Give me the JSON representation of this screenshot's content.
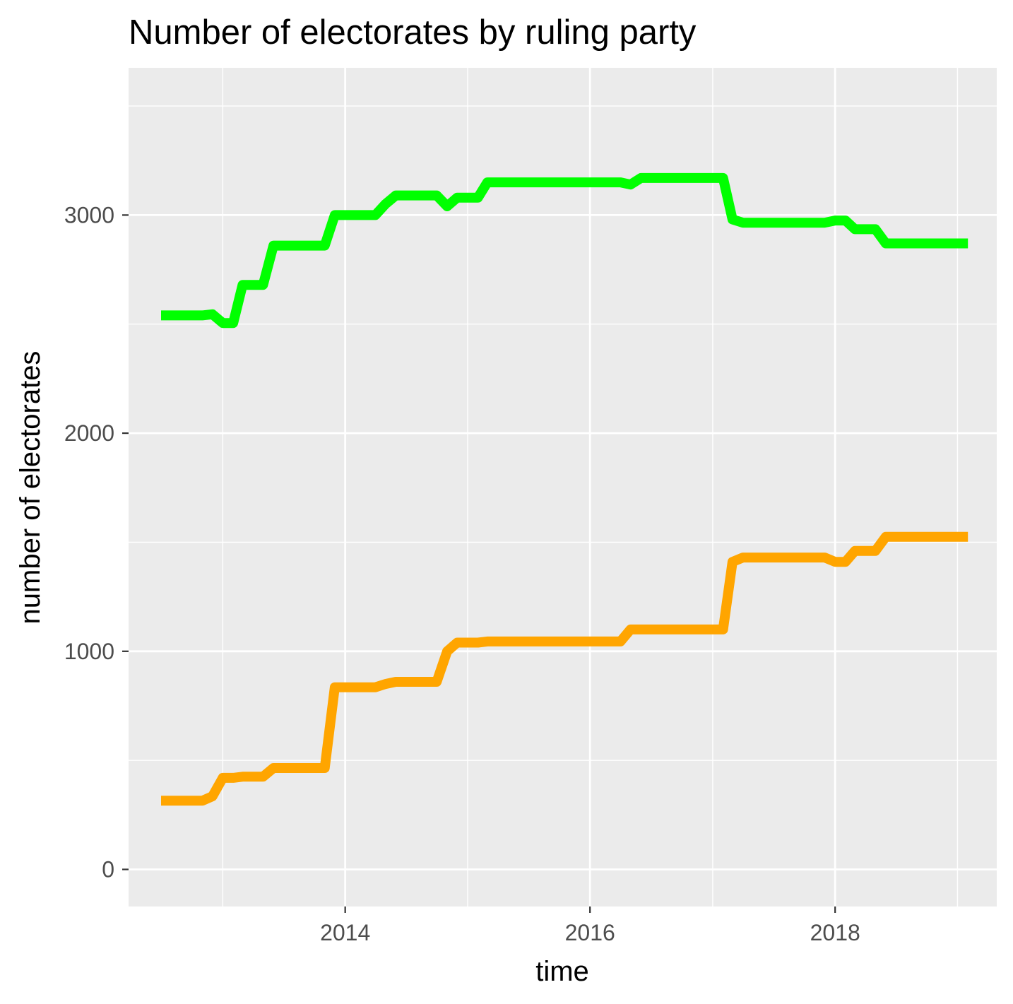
{
  "chart_data": {
    "type": "line",
    "title": "Number of electorates by ruling party",
    "xlabel": "time",
    "ylabel": "number of electorates",
    "xlim": [
      "2012-03-26",
      "2019-04-28"
    ],
    "ylim": [
      -170,
      3675
    ],
    "x_major_ticks": [
      "2014-01-01",
      "2016-01-01",
      "2018-01-01"
    ],
    "x_tick_labels": [
      "2014",
      "2016",
      "2018"
    ],
    "x_minor_ticks": [
      "2013-01-01",
      "2015-01-01",
      "2017-01-01",
      "2019-01-01"
    ],
    "y_major_ticks": [
      0,
      1000,
      2000,
      3000
    ],
    "y_tick_labels": [
      "0",
      "1000",
      "2000",
      "3000"
    ],
    "y_minor_ticks": [
      500,
      1500,
      2500,
      3500
    ],
    "grid": true,
    "legend": "none",
    "colors": {
      "panel_background": "#ebebeb",
      "grid_line": "#ffffff",
      "axis_tick": "#333333"
    },
    "series": [
      {
        "color": "#00ff00",
        "x": [
          "2012-07-01",
          "2012-08-01",
          "2012-09-01",
          "2012-10-01",
          "2012-11-01",
          "2012-12-01",
          "2013-01-01",
          "2013-02-01",
          "2013-03-01",
          "2013-04-01",
          "2013-05-01",
          "2013-06-01",
          "2013-07-01",
          "2013-08-01",
          "2013-09-01",
          "2013-10-01",
          "2013-11-01",
          "2013-12-01",
          "2014-01-01",
          "2014-02-01",
          "2014-03-01",
          "2014-04-01",
          "2014-05-01",
          "2014-06-01",
          "2014-07-01",
          "2014-08-01",
          "2014-09-01",
          "2014-10-01",
          "2014-11-01",
          "2014-12-01",
          "2015-01-01",
          "2015-02-01",
          "2015-03-01",
          "2015-04-01",
          "2015-05-01",
          "2015-06-01",
          "2015-07-01",
          "2015-08-01",
          "2015-09-01",
          "2015-10-01",
          "2015-11-01",
          "2015-12-01",
          "2016-01-01",
          "2016-02-01",
          "2016-03-01",
          "2016-04-01",
          "2016-05-01",
          "2016-06-01",
          "2016-07-01",
          "2016-08-01",
          "2016-09-01",
          "2016-10-01",
          "2016-11-01",
          "2016-12-01",
          "2017-01-01",
          "2017-02-01",
          "2017-03-01",
          "2017-04-01",
          "2017-05-01",
          "2017-06-01",
          "2017-07-01",
          "2017-08-01",
          "2017-09-01",
          "2017-10-01",
          "2017-11-01",
          "2017-12-01",
          "2018-01-01",
          "2018-02-01",
          "2018-03-01",
          "2018-04-01",
          "2018-05-01",
          "2018-06-01",
          "2018-07-01",
          "2018-08-01",
          "2018-09-01",
          "2018-10-01",
          "2018-11-01",
          "2018-12-01",
          "2019-01-01",
          "2019-02-01"
        ],
        "y": [
          2540,
          2540,
          2540,
          2540,
          2540,
          2545,
          2505,
          2505,
          2680,
          2680,
          2680,
          2860,
          2860,
          2860,
          2860,
          2860,
          2860,
          3000,
          3000,
          3000,
          3000,
          3000,
          3050,
          3090,
          3090,
          3090,
          3090,
          3090,
          3040,
          3080,
          3080,
          3080,
          3150,
          3150,
          3150,
          3150,
          3150,
          3150,
          3150,
          3150,
          3150,
          3150,
          3150,
          3150,
          3150,
          3150,
          3140,
          3170,
          3170,
          3170,
          3170,
          3170,
          3170,
          3170,
          3170,
          3170,
          2980,
          2965,
          2965,
          2965,
          2965,
          2965,
          2965,
          2965,
          2965,
          2965,
          2975,
          2975,
          2935,
          2935,
          2935,
          2870,
          2870,
          2870,
          2870,
          2870,
          2870,
          2870,
          2870,
          2870
        ]
      },
      {
        "color": "#ffa500",
        "x": [
          "2012-07-01",
          "2012-08-01",
          "2012-09-01",
          "2012-10-01",
          "2012-11-01",
          "2012-12-01",
          "2013-01-01",
          "2013-02-01",
          "2013-03-01",
          "2013-04-01",
          "2013-05-01",
          "2013-06-01",
          "2013-07-01",
          "2013-08-01",
          "2013-09-01",
          "2013-10-01",
          "2013-11-01",
          "2013-12-01",
          "2014-01-01",
          "2014-02-01",
          "2014-03-01",
          "2014-04-01",
          "2014-05-01",
          "2014-06-01",
          "2014-07-01",
          "2014-08-01",
          "2014-09-01",
          "2014-10-01",
          "2014-11-01",
          "2014-12-01",
          "2015-01-01",
          "2015-02-01",
          "2015-03-01",
          "2015-04-01",
          "2015-05-01",
          "2015-06-01",
          "2015-07-01",
          "2015-08-01",
          "2015-09-01",
          "2015-10-01",
          "2015-11-01",
          "2015-12-01",
          "2016-01-01",
          "2016-02-01",
          "2016-03-01",
          "2016-04-01",
          "2016-05-01",
          "2016-06-01",
          "2016-07-01",
          "2016-08-01",
          "2016-09-01",
          "2016-10-01",
          "2016-11-01",
          "2016-12-01",
          "2017-01-01",
          "2017-02-01",
          "2017-03-01",
          "2017-04-01",
          "2017-05-01",
          "2017-06-01",
          "2017-07-01",
          "2017-08-01",
          "2017-09-01",
          "2017-10-01",
          "2017-11-01",
          "2017-12-01",
          "2018-01-01",
          "2018-02-01",
          "2018-03-01",
          "2018-04-01",
          "2018-05-01",
          "2018-06-01",
          "2018-07-01",
          "2018-08-01",
          "2018-09-01",
          "2018-10-01",
          "2018-11-01",
          "2018-12-01",
          "2019-01-01",
          "2019-02-01"
        ],
        "y": [
          315,
          315,
          315,
          315,
          315,
          335,
          420,
          420,
          425,
          425,
          425,
          465,
          465,
          465,
          465,
          465,
          465,
          835,
          835,
          835,
          835,
          835,
          850,
          860,
          860,
          860,
          860,
          860,
          1000,
          1040,
          1040,
          1040,
          1045,
          1045,
          1045,
          1045,
          1045,
          1045,
          1045,
          1045,
          1045,
          1045,
          1045,
          1045,
          1045,
          1045,
          1100,
          1100,
          1100,
          1100,
          1100,
          1100,
          1100,
          1100,
          1100,
          1100,
          1410,
          1430,
          1430,
          1430,
          1430,
          1430,
          1430,
          1430,
          1430,
          1430,
          1410,
          1410,
          1460,
          1460,
          1460,
          1525,
          1525,
          1525,
          1525,
          1525,
          1525,
          1525,
          1525,
          1525
        ]
      }
    ]
  }
}
